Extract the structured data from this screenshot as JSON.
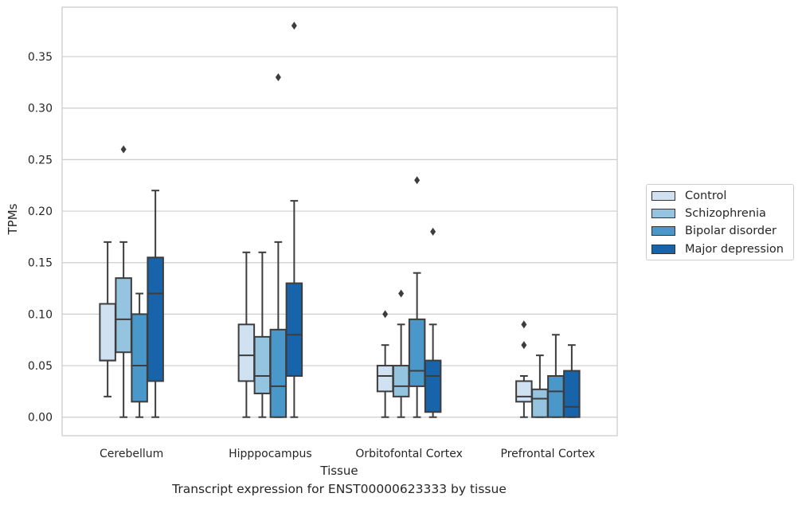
{
  "chart_data": {
    "type": "box",
    "categories": [
      "Cerebellum",
      "Hipppocampus",
      "Orbitofontal Cortex",
      "Prefrontal Cortex"
    ],
    "xlabel": "Tissue",
    "ylabel": "TPMs",
    "ylim": [
      -0.018,
      0.398
    ],
    "yticks": [
      "0.00",
      "0.05",
      "0.10",
      "0.15",
      "0.20",
      "0.25",
      "0.30",
      "0.35"
    ],
    "grid": "horizontal",
    "legend_position": "right",
    "series": [
      {
        "name": "Control",
        "color": "#d0e1f2",
        "boxes": [
          {
            "whislo": 0.02,
            "q1": 0.055,
            "med": 0.055,
            "q3": 0.11,
            "whishi": 0.17,
            "fliers": []
          },
          {
            "whislo": 0.0,
            "q1": 0.035,
            "med": 0.06,
            "q3": 0.09,
            "whishi": 0.16,
            "fliers": []
          },
          {
            "whislo": 0.0,
            "q1": 0.025,
            "med": 0.04,
            "q3": 0.05,
            "whishi": 0.07,
            "fliers": [
              0.1
            ]
          },
          {
            "whislo": 0.0,
            "q1": 0.015,
            "med": 0.02,
            "q3": 0.035,
            "whishi": 0.04,
            "fliers": [
              0.07,
              0.09
            ]
          }
        ]
      },
      {
        "name": "Schizophrenia",
        "color": "#94c4df",
        "boxes": [
          {
            "whislo": 0.0,
            "q1": 0.063,
            "med": 0.095,
            "q3": 0.135,
            "whishi": 0.17,
            "fliers": [
              0.26
            ]
          },
          {
            "whislo": 0.0,
            "q1": 0.023,
            "med": 0.04,
            "q3": 0.078,
            "whishi": 0.16,
            "fliers": []
          },
          {
            "whislo": 0.0,
            "q1": 0.02,
            "med": 0.03,
            "q3": 0.05,
            "whishi": 0.09,
            "fliers": [
              0.12
            ]
          },
          {
            "whislo": 0.0,
            "q1": 0.0,
            "med": 0.018,
            "q3": 0.027,
            "whishi": 0.06,
            "fliers": []
          }
        ]
      },
      {
        "name": "Bipolar disorder",
        "color": "#4a98c9",
        "boxes": [
          {
            "whislo": 0.0,
            "q1": 0.015,
            "med": 0.05,
            "q3": 0.1,
            "whishi": 0.12,
            "fliers": []
          },
          {
            "whislo": 0.0,
            "q1": 0.0,
            "med": 0.03,
            "q3": 0.085,
            "whishi": 0.17,
            "fliers": [
              0.33
            ]
          },
          {
            "whislo": 0.0,
            "q1": 0.03,
            "med": 0.045,
            "q3": 0.095,
            "whishi": 0.14,
            "fliers": [
              0.23
            ]
          },
          {
            "whislo": 0.0,
            "q1": 0.0,
            "med": 0.025,
            "q3": 0.04,
            "whishi": 0.08,
            "fliers": []
          }
        ]
      },
      {
        "name": "Major depression",
        "color": "#1764ab",
        "boxes": [
          {
            "whislo": 0.0,
            "q1": 0.035,
            "med": 0.12,
            "q3": 0.155,
            "whishi": 0.22,
            "fliers": []
          },
          {
            "whislo": 0.0,
            "q1": 0.04,
            "med": 0.08,
            "q3": 0.13,
            "whishi": 0.21,
            "fliers": [
              0.38
            ]
          },
          {
            "whislo": 0.0,
            "q1": 0.005,
            "med": 0.04,
            "q3": 0.055,
            "whishi": 0.09,
            "fliers": [
              0.18
            ]
          },
          {
            "whislo": 0.0,
            "q1": 0.0,
            "med": 0.01,
            "q3": 0.045,
            "whishi": 0.07,
            "fliers": []
          }
        ]
      }
    ]
  },
  "caption": "Transcript expression for ENST00000623333 by tissue"
}
